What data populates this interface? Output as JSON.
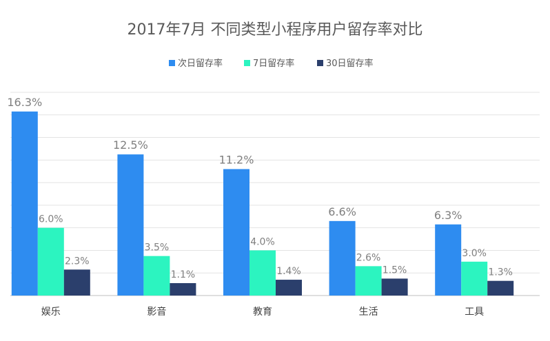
{
  "chart_data": {
    "type": "bar",
    "title": "2017年7月 不同类型小程序用户留存率对比",
    "categories": [
      "娱乐",
      "影音",
      "教育",
      "生活",
      "工具"
    ],
    "series": [
      {
        "name": "次日留存率",
        "color": "#2e8cf0",
        "values": [
          16.3,
          12.5,
          11.2,
          6.6,
          6.3
        ],
        "labels": [
          "16.3%",
          "12.5%",
          "11.2%",
          "6.6%",
          "6.3%"
        ]
      },
      {
        "name": "7日留存率",
        "color": "#2cf4c0",
        "values": [
          6.0,
          3.5,
          4.0,
          2.6,
          3.0
        ],
        "labels": [
          "6.0%",
          "3.5%",
          "4.0%",
          "2.6%",
          "3.0%"
        ]
      },
      {
        "name": "30日留存率",
        "color": "#2b3f6c",
        "values": [
          2.3,
          1.1,
          1.4,
          1.5,
          1.3
        ],
        "labels": [
          "2.3%",
          "1.1%",
          "1.4%",
          "1.5%",
          "1.3%"
        ]
      }
    ],
    "ylim": [
      0,
      18
    ],
    "grid": true,
    "legend": "top-center"
  }
}
